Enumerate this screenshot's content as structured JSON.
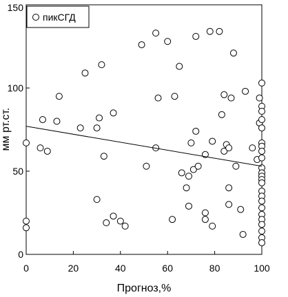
{
  "chart_data": {
    "type": "scatter",
    "xlabel": "Прогноз,%",
    "ylabel": "мм рт.ст.",
    "xlim": [
      0,
      100
    ],
    "ylim": [
      0,
      150
    ],
    "xticks": [
      0,
      20,
      40,
      60,
      80,
      100
    ],
    "yticks": [
      0,
      50,
      100,
      150
    ],
    "grid": false,
    "legend_position": "top-left",
    "series": [
      {
        "name": "пикСГД",
        "marker": "open-circle",
        "points": [
          [
            0,
            67
          ],
          [
            0,
            20
          ],
          [
            0,
            16
          ],
          [
            6,
            64
          ],
          [
            7,
            81
          ],
          [
            9,
            62
          ],
          [
            13,
            80
          ],
          [
            14,
            95
          ],
          [
            23,
            76
          ],
          [
            25,
            109
          ],
          [
            30,
            76
          ],
          [
            30,
            33
          ],
          [
            31,
            82
          ],
          [
            32,
            114
          ],
          [
            33,
            59
          ],
          [
            34,
            19
          ],
          [
            37,
            85
          ],
          [
            37,
            23
          ],
          [
            40,
            20
          ],
          [
            42,
            17
          ],
          [
            49,
            126
          ],
          [
            51,
            53
          ],
          [
            55,
            133
          ],
          [
            55,
            64
          ],
          [
            56,
            94
          ],
          [
            60,
            128
          ],
          [
            62,
            21
          ],
          [
            63,
            95
          ],
          [
            65,
            113
          ],
          [
            66,
            49
          ],
          [
            68,
            40
          ],
          [
            69,
            47
          ],
          [
            69,
            29
          ],
          [
            70,
            67
          ],
          [
            71,
            51
          ],
          [
            72,
            131
          ],
          [
            72,
            74
          ],
          [
            73,
            53
          ],
          [
            76,
            60
          ],
          [
            76,
            25
          ],
          [
            76,
            21
          ],
          [
            78,
            134
          ],
          [
            79,
            68
          ],
          [
            79,
            17
          ],
          [
            82,
            134
          ],
          [
            83,
            84
          ],
          [
            84,
            62
          ],
          [
            84,
            96
          ],
          [
            85,
            66
          ],
          [
            86,
            64
          ],
          [
            86,
            40
          ],
          [
            86,
            30
          ],
          [
            87,
            94
          ],
          [
            88,
            121
          ],
          [
            89,
            53
          ],
          [
            91,
            27
          ],
          [
            92,
            12
          ],
          [
            93,
            98
          ],
          [
            96,
            64
          ],
          [
            98,
            57
          ],
          [
            99,
            79
          ],
          [
            99,
            94
          ],
          [
            100,
            103
          ],
          [
            100,
            89
          ],
          [
            100,
            86
          ],
          [
            100,
            81
          ],
          [
            100,
            76
          ],
          [
            100,
            67
          ],
          [
            100,
            65
          ],
          [
            100,
            62
          ],
          [
            100,
            58
          ],
          [
            100,
            52
          ],
          [
            100,
            49
          ],
          [
            100,
            47
          ],
          [
            100,
            45
          ],
          [
            100,
            43
          ],
          [
            100,
            38
          ],
          [
            100,
            35
          ],
          [
            100,
            32
          ],
          [
            100,
            28
          ],
          [
            100,
            24
          ],
          [
            100,
            21
          ],
          [
            100,
            18
          ],
          [
            100,
            14
          ],
          [
            100,
            10
          ],
          [
            100,
            7
          ]
        ]
      }
    ],
    "trendline": {
      "x": [
        0,
        100
      ],
      "y": [
        77,
        53
      ]
    }
  }
}
